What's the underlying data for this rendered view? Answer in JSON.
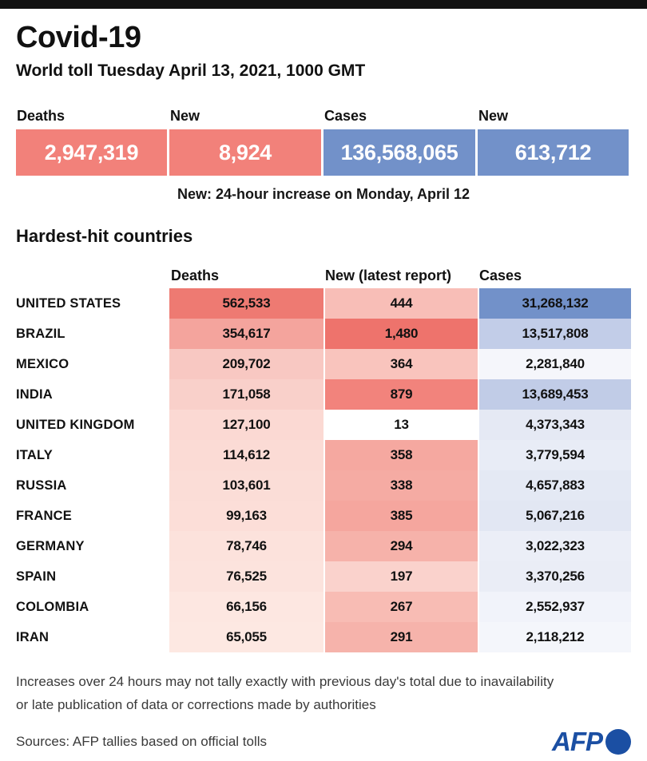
{
  "page": {
    "title": "Covid-19",
    "subtitle": "World toll Tuesday April 13, 2021, 1000 GMT"
  },
  "summary": {
    "items": [
      {
        "label": "Deaths",
        "value": "2,947,319",
        "bg": "#f2817a"
      },
      {
        "label": "New",
        "value": "8,924",
        "bg": "#f2817a"
      },
      {
        "label": "Cases",
        "value": "136,568,065",
        "bg": "#7291c9"
      },
      {
        "label": "New",
        "value": "613,712",
        "bg": "#7291c9"
      }
    ],
    "note": "New: 24-hour increase on Monday, April 12"
  },
  "section": {
    "heading": "Hardest-hit countries"
  },
  "chart_data": {
    "type": "table",
    "title": "Covid-19 world toll, Tuesday April 13, 2021, 1000 GMT",
    "columns": [
      "Deaths",
      "New (latest report)",
      "Cases"
    ],
    "rows": [
      {
        "country": "UNITED STATES",
        "deaths": "562,533",
        "new": "444",
        "cases": "31,268,132",
        "deaths_bg": "#ee7a72",
        "new_bg": "#f8beb7",
        "cases_bg": "#7291c9"
      },
      {
        "country": "BRAZIL",
        "deaths": "354,617",
        "new": "1,480",
        "cases": "13,517,808",
        "deaths_bg": "#f4a49d",
        "new_bg": "#ee736c",
        "cases_bg": "#c2cde8"
      },
      {
        "country": "MEXICO",
        "deaths": "209,702",
        "new": "364",
        "cases": "2,281,840",
        "deaths_bg": "#f8c8c2",
        "new_bg": "#f9c4bd",
        "cases_bg": "#f5f6fb"
      },
      {
        "country": "INDIA",
        "deaths": "171,058",
        "new": "879",
        "cases": "13,689,453",
        "deaths_bg": "#f9d0ca",
        "new_bg": "#f2837c",
        "cases_bg": "#c1cce7"
      },
      {
        "country": "UNITED KINGDOM",
        "deaths": "127,100",
        "new": "13",
        "cases": "4,373,343",
        "deaths_bg": "#fbd9d3",
        "new_bg": "#ffffff",
        "cases_bg": "#e5e9f4"
      },
      {
        "country": "ITALY",
        "deaths": "114,612",
        "new": "358",
        "cases": "3,779,594",
        "deaths_bg": "#fbdbd5",
        "new_bg": "#f5a8a0",
        "cases_bg": "#e8ecf6"
      },
      {
        "country": "RUSSIA",
        "deaths": "103,601",
        "new": "338",
        "cases": "4,657,883",
        "deaths_bg": "#fbddd7",
        "new_bg": "#f5aba3",
        "cases_bg": "#e4e9f4"
      },
      {
        "country": "FRANCE",
        "deaths": "99,163",
        "new": "385",
        "cases": "5,067,216",
        "deaths_bg": "#fcded8",
        "new_bg": "#f5a69e",
        "cases_bg": "#e2e7f3"
      },
      {
        "country": "GERMANY",
        "deaths": "78,746",
        "new": "294",
        "cases": "3,022,323",
        "deaths_bg": "#fce2dc",
        "new_bg": "#f6b2aa",
        "cases_bg": "#ebeef7"
      },
      {
        "country": "SPAIN",
        "deaths": "76,525",
        "new": "197",
        "cases": "3,370,256",
        "deaths_bg": "#fce3dd",
        "new_bg": "#fad2cc",
        "cases_bg": "#eaedf6"
      },
      {
        "country": "COLOMBIA",
        "deaths": "66,156",
        "new": "267",
        "cases": "2,552,937",
        "deaths_bg": "#fde7e1",
        "new_bg": "#f8bcb4",
        "cases_bg": "#f1f3fa"
      },
      {
        "country": "IRAN",
        "deaths": "65,055",
        "new": "291",
        "cases": "2,118,212",
        "deaths_bg": "#fde8e2",
        "new_bg": "#f6b3ab",
        "cases_bg": "#f4f6fb"
      }
    ]
  },
  "footer": {
    "note_line1": "Increases over 24 hours may not tally exactly with previous day's total due to inavailability",
    "note_line2": "or late publication of data or corrections made by authorities",
    "sources": "Sources: AFP tallies based on official tolls",
    "logo_text": "AFP"
  },
  "colors": {
    "accent_red": "#f2817a",
    "accent_blue": "#7291c9",
    "logo_blue": "#1b4fa3",
    "topbar_black": "#111111"
  }
}
